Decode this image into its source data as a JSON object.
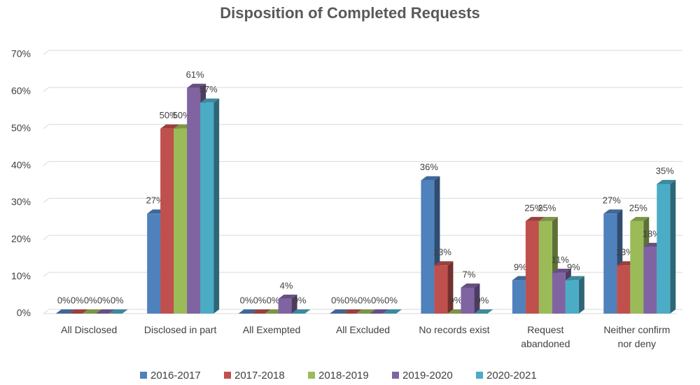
{
  "chart_data": {
    "type": "bar3d",
    "title": "Disposition of Completed Requests",
    "categories": [
      "All Disclosed",
      "Disclosed in part",
      "All Exempted",
      "All Excluded",
      "No records exist",
      "Request abandoned",
      "Neither confirm nor deny"
    ],
    "series": [
      {
        "name": "2016-2017",
        "color": "#4f81bd",
        "values": [
          0,
          27,
          0,
          0,
          36,
          9,
          27
        ],
        "value_labels": [
          "0%",
          "27%",
          "0%",
          "0%",
          "36%",
          "9%",
          "27%"
        ]
      },
      {
        "name": "2017-2018",
        "color": "#c0504d",
        "values": [
          0,
          50,
          0,
          0,
          13,
          25,
          13
        ],
        "value_labels": [
          "0%",
          "50%",
          "0%",
          "0%",
          "13%",
          "25%",
          "13%"
        ]
      },
      {
        "name": "2018-2019",
        "color": "#9bbb59",
        "values": [
          0,
          50,
          0,
          0,
          0,
          25,
          25
        ],
        "value_labels": [
          "0%",
          "50%",
          "0%",
          "0%",
          "0%",
          "25%",
          "25%"
        ]
      },
      {
        "name": "2019-2020",
        "color": "#8064a2",
        "values": [
          0,
          61,
          4,
          0,
          7,
          11,
          18
        ],
        "value_labels": [
          "0%",
          "61%",
          "4%",
          "0%",
          "7%",
          "11%",
          "18%"
        ]
      },
      {
        "name": "2020-2021",
        "color": "#4bacc6",
        "values": [
          0,
          57,
          0,
          0,
          0,
          9,
          35
        ],
        "value_labels": [
          "0%",
          "57%",
          "0%",
          "0%",
          "0%",
          "9%",
          "35%"
        ]
      }
    ],
    "ylim": [
      0,
      70
    ],
    "yticks": [
      {
        "value": 0,
        "label": "0%"
      },
      {
        "value": 10,
        "label": "10%"
      },
      {
        "value": 20,
        "label": "20%"
      },
      {
        "value": 30,
        "label": "30%"
      },
      {
        "value": 40,
        "label": "40%"
      },
      {
        "value": 50,
        "label": "50%"
      },
      {
        "value": 60,
        "label": "60%"
      },
      {
        "value": 70,
        "label": "70%"
      }
    ],
    "grid": true,
    "legend": "bottom"
  }
}
